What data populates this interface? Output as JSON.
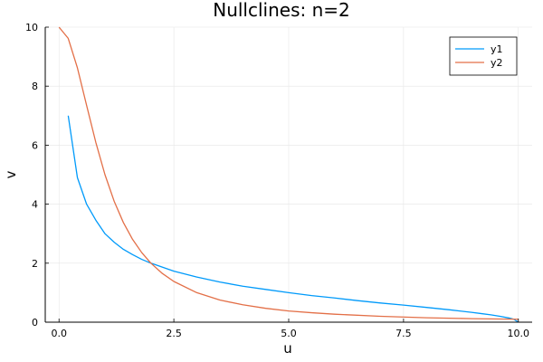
{
  "chart_data": {
    "type": "line",
    "title": "Nullclines: n=2",
    "xlabel": "u",
    "ylabel": "v",
    "xlim": [
      -0.3,
      10.3
    ],
    "ylim": [
      0,
      10
    ],
    "xticks": [
      0,
      2.5,
      5,
      7.5,
      10
    ],
    "xtick_labels": [
      "0.0",
      "2.5",
      "5.0",
      "7.5",
      "10.0"
    ],
    "yticks": [
      0,
      2,
      4,
      6,
      8,
      10
    ],
    "ytick_labels": [
      "0",
      "2",
      "4",
      "6",
      "8",
      "10"
    ],
    "grid": true,
    "legend_position": "top-right",
    "series": [
      {
        "name": "y1",
        "color": "#009AFA",
        "x": [
          0.2,
          0.4,
          0.6,
          0.8,
          1.0,
          1.2,
          1.4,
          1.6,
          1.8,
          2.0,
          2.5,
          3.0,
          3.5,
          4.0,
          4.5,
          5.0,
          5.5,
          6.0,
          6.5,
          7.0,
          7.5,
          8.0,
          8.5,
          9.0,
          9.2,
          9.4,
          9.6,
          9.8,
          9.9,
          10.0
        ],
        "y": [
          7.0,
          4.9,
          4.0,
          3.46,
          3.0,
          2.71,
          2.47,
          2.29,
          2.13,
          2.0,
          1.73,
          1.53,
          1.36,
          1.22,
          1.11,
          1.0,
          0.9,
          0.82,
          0.73,
          0.65,
          0.58,
          0.5,
          0.42,
          0.33,
          0.29,
          0.25,
          0.2,
          0.14,
          0.1,
          0.0
        ]
      },
      {
        "name": "y2",
        "color": "#E36F47",
        "x": [
          0.0,
          0.2,
          0.4,
          0.6,
          0.8,
          1.0,
          1.2,
          1.4,
          1.6,
          1.8,
          2.0,
          2.25,
          2.5,
          3.0,
          3.5,
          4.0,
          4.5,
          5.0,
          5.5,
          6.0,
          7.0,
          8.0,
          9.0,
          10.0
        ],
        "y": [
          10.0,
          9.62,
          8.62,
          7.35,
          6.1,
          5.0,
          4.1,
          3.38,
          2.81,
          2.36,
          2.0,
          1.65,
          1.38,
          1.0,
          0.75,
          0.59,
          0.47,
          0.38,
          0.32,
          0.27,
          0.2,
          0.15,
          0.12,
          0.1
        ]
      }
    ]
  }
}
